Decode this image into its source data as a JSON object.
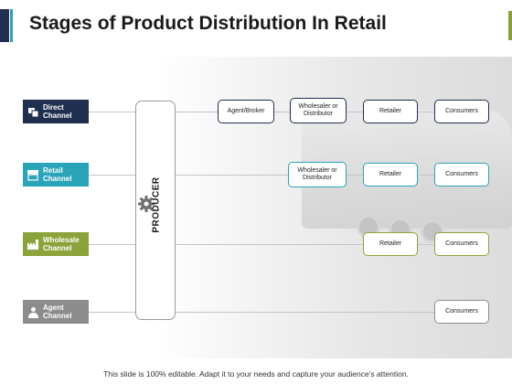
{
  "title": "Stages of Product Distribution In Retail",
  "producer_label": "PRODUCER",
  "channels": [
    {
      "name": "Direct Channel",
      "line1": "Direct",
      "line2": "Channel",
      "color": "#1f2f4f",
      "icon": "store-icon",
      "stages": [
        "Agent/Broker",
        "Wholesaler or Distributor",
        "Retailer",
        "Consumers"
      ]
    },
    {
      "name": "Retail Channel",
      "line1": "Retail",
      "line2": "Channel",
      "color": "#2aa4b8",
      "icon": "shop-awning-icon",
      "stages": [
        "Wholesaler or Distributor",
        "Retailer",
        "Consumers"
      ]
    },
    {
      "name": "Wholesale Channel",
      "line1": "Wholesale",
      "line2": "Channel",
      "color": "#8ba33a",
      "icon": "factory-icon",
      "stages": [
        "Retailer",
        "Consumers"
      ]
    },
    {
      "name": "Agent Channel",
      "line1": "Agent",
      "line2": "Channel",
      "color": "#8c8c8c",
      "icon": "agent-icon",
      "stages": [
        "Consumers"
      ]
    }
  ],
  "footer": "This slide is 100% editable. Adapt it to your needs and capture your audience's attention."
}
